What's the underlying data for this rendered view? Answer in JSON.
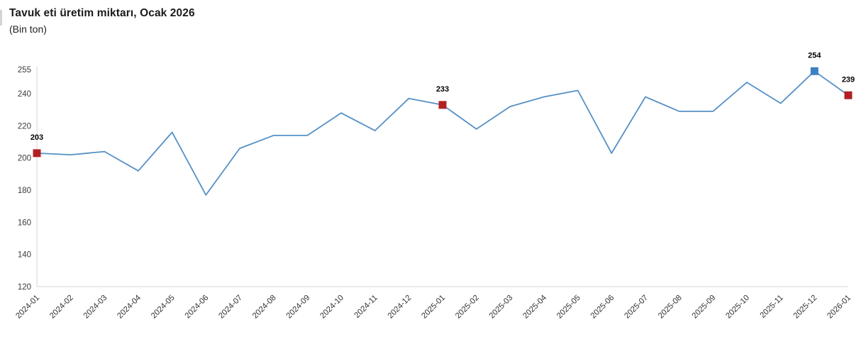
{
  "page": {
    "title": "Tavuk eti üretim miktarı, Ocak 2026",
    "subtitle": "(Bin ton)"
  },
  "chart_data": {
    "type": "line",
    "title": "Tavuk eti üretim miktarı, Ocak 2026",
    "subtitle": "(Bin ton)",
    "xlabel": "",
    "ylabel": "Bin ton",
    "categories": [
      "2024-01",
      "2024-02",
      "2024-03",
      "2024-04",
      "2024-05",
      "2024-06",
      "2024-07",
      "2024-08",
      "2024-09",
      "2024-10",
      "2024-11",
      "2024-12",
      "2025-01",
      "2025-02",
      "2025-03",
      "2025-04",
      "2025-05",
      "2025-06",
      "2025-07",
      "2025-08",
      "2025-09",
      "2025-10",
      "2025-11",
      "2025-12",
      "2026-01"
    ],
    "values": [
      203,
      202,
      204,
      192,
      216,
      177,
      206,
      214,
      214,
      228,
      217,
      237,
      233,
      218,
      232,
      238,
      242,
      203,
      238,
      229,
      229,
      247,
      234,
      254,
      239
    ],
    "y_ticks": [
      255,
      240,
      220,
      200,
      180,
      160,
      140,
      120
    ],
    "ylim": [
      120,
      255
    ],
    "grid": false,
    "legend_position": "none",
    "x_label_rotation_deg": -45,
    "colors": {
      "line": "#5590c6",
      "marker_red": "#b22024",
      "marker_blue": "#3d80c4",
      "axis_line": "#d6d6d6",
      "tick_text": "#3c3c3c",
      "data_label_text": "#000000",
      "title_text": "#1b1b1b"
    },
    "marked_points": [
      {
        "category": "2024-01",
        "value": 203,
        "label": "203",
        "color": "#b22024"
      },
      {
        "category": "2025-01",
        "value": 233,
        "label": "233",
        "color": "#b22024"
      },
      {
        "category": "2025-12",
        "value": 254,
        "label": "254",
        "color": "#3d80c4"
      },
      {
        "category": "2026-01",
        "value": 239,
        "label": "239",
        "color": "#b22024"
      }
    ]
  }
}
